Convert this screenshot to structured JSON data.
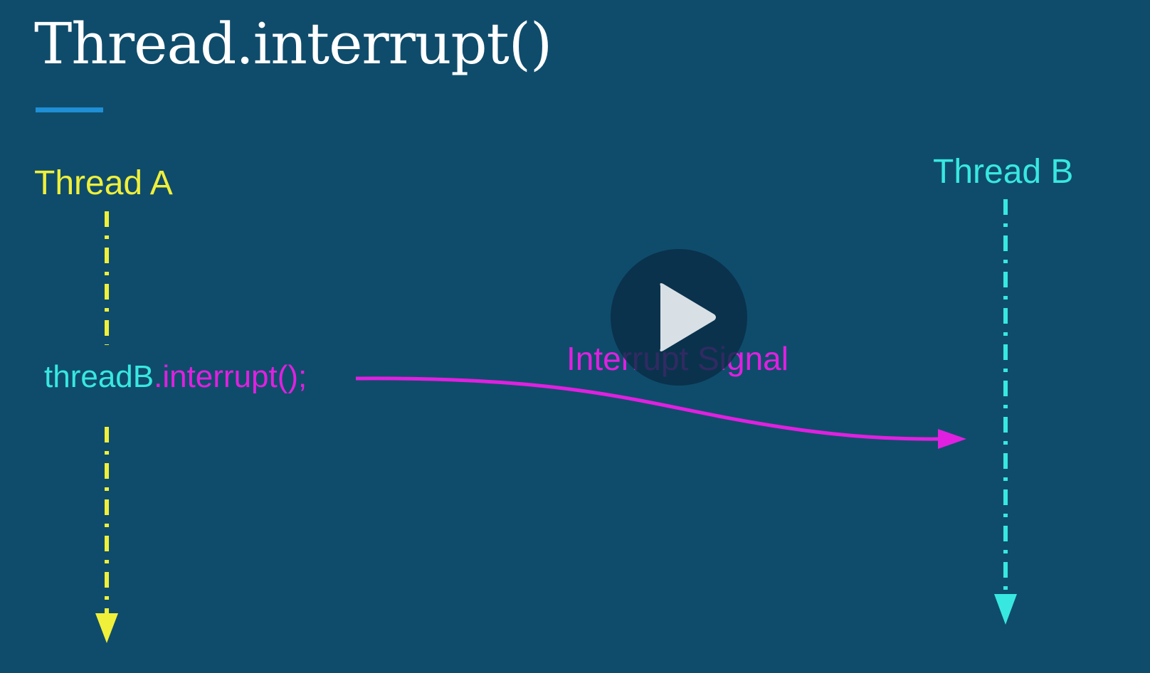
{
  "slide": {
    "title": "Thread.interrupt()",
    "thread_a_label": "Thread A",
    "thread_b_label": "Thread B",
    "call_object": "threadB",
    "call_method": ".interrupt();",
    "signal_label": "Interrupt Signal"
  },
  "player": {
    "play_icon": "play-icon"
  },
  "colors": {
    "background": "#0f4c6b",
    "title": "#ffffff",
    "accent_underline": "#1f8fd6",
    "thread_a": "#f0f03a",
    "thread_b": "#38e8e0",
    "signal": "#e020e0"
  }
}
